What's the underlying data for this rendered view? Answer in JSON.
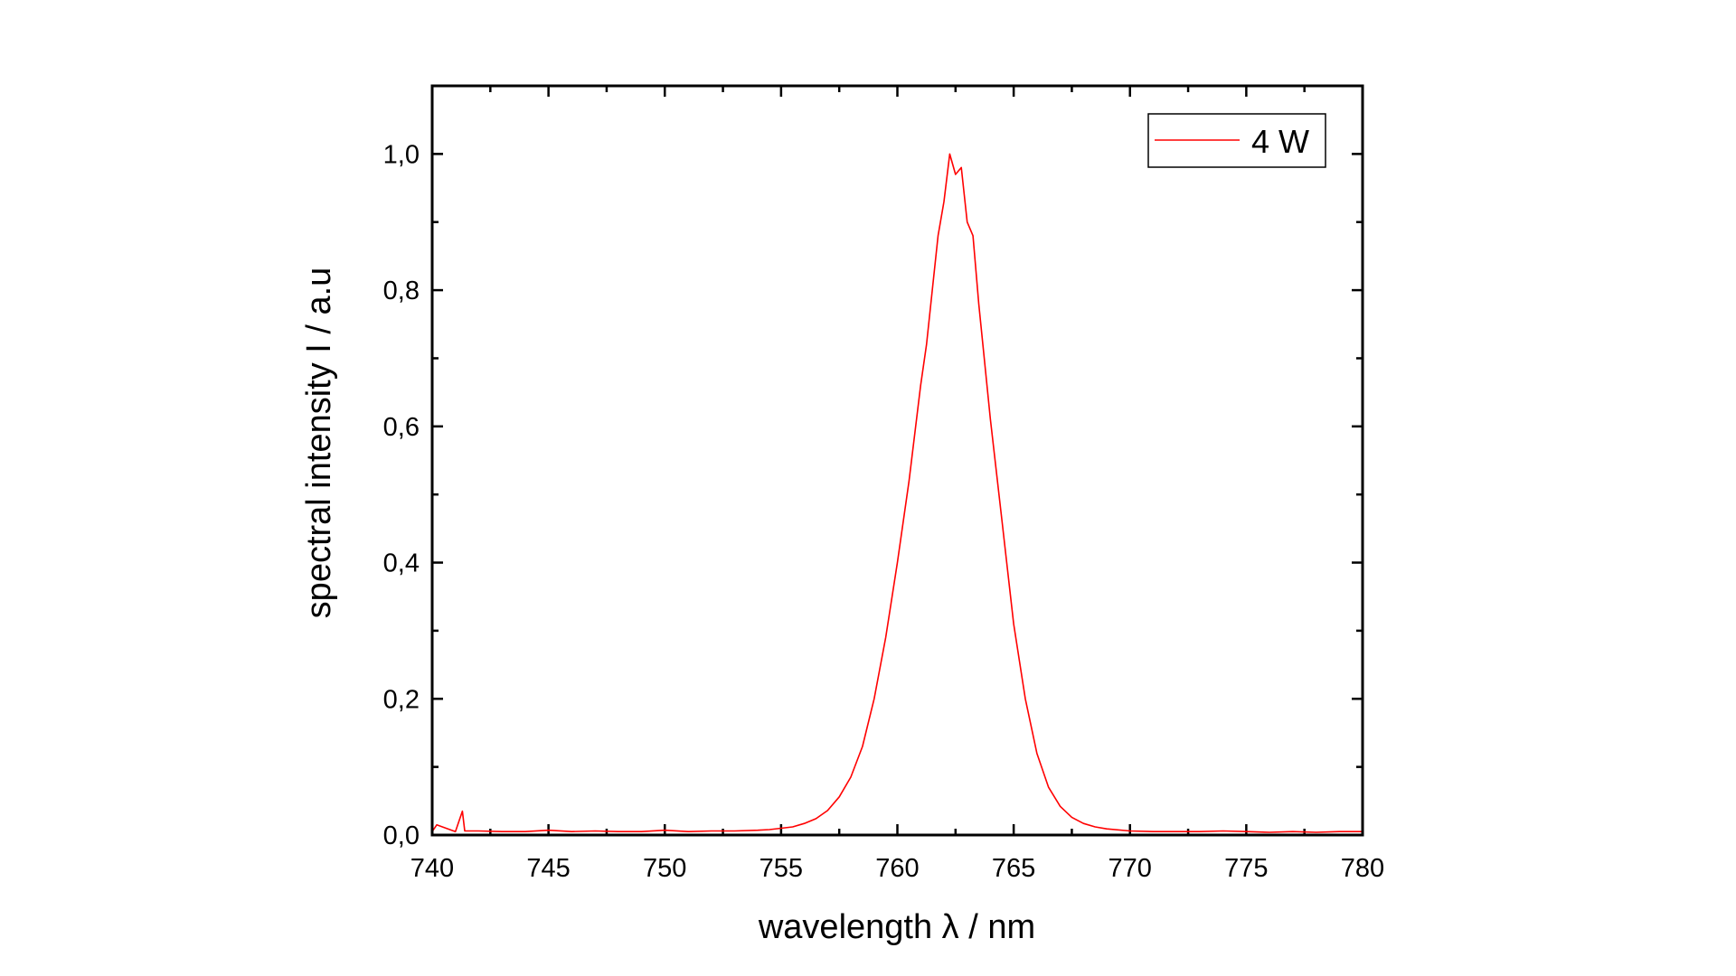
{
  "chart_data": {
    "type": "line",
    "title": "",
    "xlabel": "wavelength λ / nm",
    "ylabel": "spectral intensity I / a.u",
    "xlim": [
      740,
      780
    ],
    "ylim": [
      0,
      1.1
    ],
    "x_ticks": [
      "740",
      "745",
      "750",
      "755",
      "760",
      "765",
      "770",
      "775",
      "780"
    ],
    "y_ticks": [
      "0,0",
      "0,2",
      "0,4",
      "0,6",
      "0,8",
      "1,0"
    ],
    "x_tick_values": [
      740,
      745,
      750,
      755,
      760,
      765,
      770,
      775,
      780
    ],
    "y_tick_values": [
      0,
      0.2,
      0.4,
      0.6,
      0.8,
      1.0
    ],
    "grid": false,
    "legend": {
      "placement": "top-right",
      "entries": [
        "4 W"
      ]
    },
    "series": [
      {
        "name": "4 W",
        "color": "#ff0000",
        "x": [
          740,
          740.2,
          741,
          741.3,
          741.4,
          742,
          743,
          744,
          745,
          746,
          747,
          748,
          749,
          750,
          751,
          752,
          753,
          754,
          754.5,
          755,
          755.5,
          756,
          756.5,
          757,
          757.5,
          758,
          758.5,
          759,
          759.5,
          760,
          760.5,
          761,
          761.25,
          761.5,
          761.75,
          762,
          762.25,
          762.5,
          762.75,
          763,
          763.25,
          763.5,
          764,
          764.5,
          765,
          765.5,
          766,
          766.5,
          767,
          767.5,
          768,
          768.5,
          769,
          770,
          771,
          772,
          773,
          774,
          775,
          776,
          777,
          778,
          779,
          780
        ],
        "y": [
          0.005,
          0.015,
          0.005,
          0.035,
          0.006,
          0.006,
          0.005,
          0.005,
          0.007,
          0.005,
          0.006,
          0.005,
          0.005,
          0.007,
          0.005,
          0.006,
          0.006,
          0.007,
          0.008,
          0.01,
          0.012,
          0.017,
          0.024,
          0.036,
          0.056,
          0.085,
          0.13,
          0.2,
          0.29,
          0.4,
          0.52,
          0.66,
          0.72,
          0.8,
          0.88,
          0.93,
          1.0,
          0.97,
          0.98,
          0.9,
          0.88,
          0.78,
          0.61,
          0.46,
          0.31,
          0.2,
          0.12,
          0.07,
          0.042,
          0.026,
          0.017,
          0.012,
          0.009,
          0.006,
          0.005,
          0.005,
          0.005,
          0.006,
          0.005,
          0.004,
          0.005,
          0.004,
          0.005,
          0.005
        ]
      }
    ]
  }
}
